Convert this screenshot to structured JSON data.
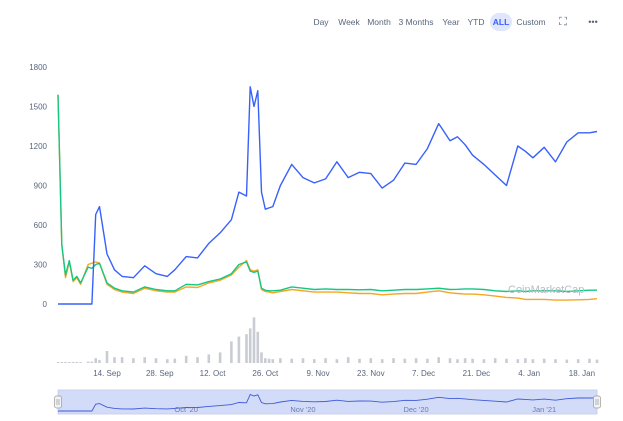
{
  "toolbar": {
    "ranges": [
      "Day",
      "Week",
      "Month",
      "3 Months",
      "Year",
      "YTD",
      "ALL",
      "Custom"
    ],
    "active": "ALL",
    "fullscreen_icon": "fullscreen-icon",
    "menu_icon": "more-icon",
    "fullscreen_glyph": "⛶",
    "menu_glyph": "•••"
  },
  "watermark": "CoinMarketCap",
  "colors": {
    "blue": "#3861fb",
    "green": "#16c784",
    "orange": "#f5a623",
    "volume": "#c9ccd3",
    "nav_fill": "#d2dcf8"
  },
  "chart_data": {
    "type": "line",
    "y_ticks": [
      "0",
      "300",
      "600",
      "900",
      "1200",
      "1500",
      "1800"
    ],
    "ylim": [
      0,
      1800
    ],
    "x_ticks": [
      "14. Sep",
      "28. Sep",
      "12. Oct",
      "26. Oct",
      "9. Nov",
      "23. Nov",
      "7. Dec",
      "21. Dec",
      "4. Jan",
      "18. Jan"
    ],
    "x": [
      "Sep 1",
      "Sep 2",
      "Sep 3",
      "Sep 4",
      "Sep 5",
      "Sep 6",
      "Sep 7",
      "Sep 9",
      "Sep 10",
      "Sep 11",
      "Sep 12",
      "Sep 14",
      "Sep 16",
      "Sep 18",
      "Sep 21",
      "Sep 24",
      "Sep 27",
      "Sep 30",
      "Oct 2",
      "Oct 5",
      "Oct 8",
      "Oct 11",
      "Oct 14",
      "Oct 17",
      "Oct 19",
      "Oct 21",
      "Oct 22",
      "Oct 23",
      "Oct 24",
      "Oct 25",
      "Oct 26",
      "Oct 27",
      "Oct 28",
      "Oct 30",
      "Nov 2",
      "Nov 5",
      "Nov 8",
      "Nov 11",
      "Nov 14",
      "Nov 17",
      "Nov 20",
      "Nov 23",
      "Nov 26",
      "Nov 29",
      "Dec 2",
      "Dec 5",
      "Dec 8",
      "Dec 11",
      "Dec 14",
      "Dec 16",
      "Dec 18",
      "Dec 20",
      "Dec 23",
      "Dec 26",
      "Dec 29",
      "Jan 1",
      "Jan 3",
      "Jan 5",
      "Jan 8",
      "Jan 11",
      "Jan 14",
      "Jan 17",
      "Jan 20",
      "Jan 22"
    ],
    "series": [
      {
        "color": "#3861fb",
        "values": [
          0,
          0,
          0,
          0,
          0,
          0,
          0,
          0,
          0,
          680,
          740,
          380,
          260,
          210,
          200,
          290,
          230,
          210,
          260,
          360,
          350,
          460,
          540,
          640,
          850,
          820,
          1650,
          1500,
          1620,
          850,
          720,
          730,
          740,
          900,
          1060,
          960,
          920,
          950,
          1080,
          960,
          1000,
          990,
          880,
          940,
          1070,
          1060,
          1180,
          1370,
          1240,
          1270,
          1210,
          1130,
          1060,
          980,
          900,
          1200,
          1160,
          1110,
          1190,
          1080,
          1230,
          1300,
          1300,
          1310
        ]
      },
      {
        "color": "#16c784",
        "values": [
          1590,
          450,
          220,
          330,
          180,
          210,
          160,
          280,
          270,
          300,
          310,
          160,
          120,
          100,
          90,
          130,
          110,
          100,
          100,
          150,
          145,
          170,
          190,
          230,
          300,
          320,
          250,
          240,
          250,
          120,
          105,
          100,
          100,
          105,
          130,
          120,
          110,
          115,
          110,
          110,
          108,
          110,
          100,
          105,
          110,
          110,
          115,
          120,
          110,
          112,
          115,
          115,
          110,
          100,
          95,
          100,
          95,
          100,
          100,
          100,
          95,
          100,
          105,
          105
        ]
      },
      {
        "color": "#f5a623",
        "values": [
          1590,
          450,
          200,
          320,
          170,
          200,
          150,
          300,
          310,
          320,
          310,
          150,
          110,
          90,
          80,
          120,
          100,
          90,
          90,
          130,
          125,
          160,
          180,
          220,
          280,
          330,
          260,
          250,
          260,
          110,
          95,
          90,
          85,
          95,
          110,
          100,
          90,
          90,
          90,
          85,
          80,
          80,
          70,
          75,
          80,
          80,
          90,
          100,
          85,
          80,
          75,
          75,
          70,
          60,
          50,
          45,
          35,
          35,
          35,
          30,
          30,
          32,
          35,
          40
        ]
      }
    ],
    "volume": [
      2,
      2,
      2,
      2,
      2,
      2,
      2,
      3,
      3,
      10,
      6,
      25,
      12,
      12,
      10,
      12,
      10,
      8,
      9,
      15,
      12,
      18,
      22,
      45,
      55,
      60,
      72,
      95,
      65,
      22,
      10,
      9,
      8,
      10,
      9,
      10,
      8,
      10,
      8,
      12,
      9,
      10,
      8,
      10,
      9,
      10,
      9,
      12,
      10,
      8,
      10,
      9,
      8,
      10,
      9,
      8,
      10,
      8,
      9,
      8,
      7,
      8,
      9,
      7
    ],
    "navigator_labels": [
      "Oct '20",
      "Nov '20",
      "Dec '20",
      "Jan '21"
    ],
    "legend": "none",
    "grid": false
  }
}
